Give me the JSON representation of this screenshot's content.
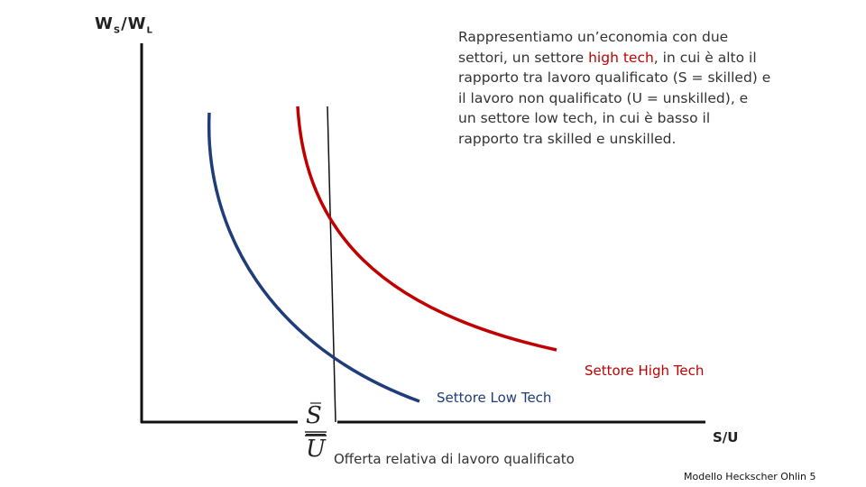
{
  "y_axis_label": {
    "w1": "W",
    "s1": "S",
    "w2": "/W",
    "s2": "L"
  },
  "x_axis_label": "S/U",
  "paragraph": [
    [
      "Rappresentiamo un’economia con due"
    ],
    [
      "settori, un settore ",
      "high tech",
      ", in cui è alto il"
    ],
    [
      "rapporto tra lavoro qualificato (S = skilled) e"
    ],
    [
      "il lavoro non qualificato (U = unskilled), e"
    ],
    [
      "un settore low tech, in cui è basso il"
    ],
    [
      "rapporto tra skilled e unskilled."
    ]
  ],
  "high_tech_label": "Settore High Tech",
  "low_tech_label": "Settore Low Tech",
  "supply_fraction": {
    "numerator": "S",
    "denominator": "U"
  },
  "supply_label": "Offerta relativa di lavoro qualificato",
  "footer": "Modello Heckscher Ohlin 5"
}
